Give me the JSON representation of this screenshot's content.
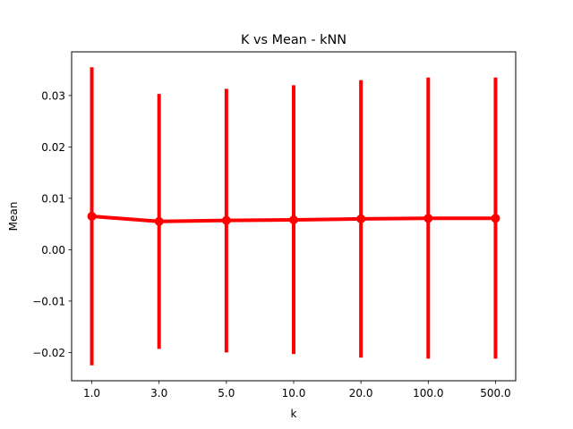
{
  "chart_data": {
    "type": "line",
    "title": "K vs Mean - kNN",
    "xlabel": "k",
    "ylabel": "Mean",
    "categories": [
      "1.0",
      "3.0",
      "5.0",
      "10.0",
      "20.0",
      "100.0",
      "500.0"
    ],
    "series": [
      {
        "values": [
          0.0065,
          0.0055,
          0.0057,
          0.0058,
          0.006,
          0.0061,
          0.0061
        ],
        "err_upper": [
          0.0355,
          0.0303,
          0.0313,
          0.032,
          0.033,
          0.0335,
          0.0335
        ],
        "err_lower": [
          -0.0225,
          -0.0193,
          -0.02,
          -0.0203,
          -0.021,
          -0.0212,
          -0.0212
        ],
        "color": "#ff0000",
        "marker": "circle",
        "error_bars": true
      }
    ],
    "ylim": [
      -0.0255,
      0.0385
    ],
    "yticks": [
      -0.02,
      -0.01,
      0.0,
      0.01,
      0.02,
      0.03
    ],
    "ytick_labels": [
      "−0.02",
      "−0.01",
      "0.00",
      "0.01",
      "0.02",
      "0.03"
    ],
    "grid": false,
    "legend": false
  }
}
